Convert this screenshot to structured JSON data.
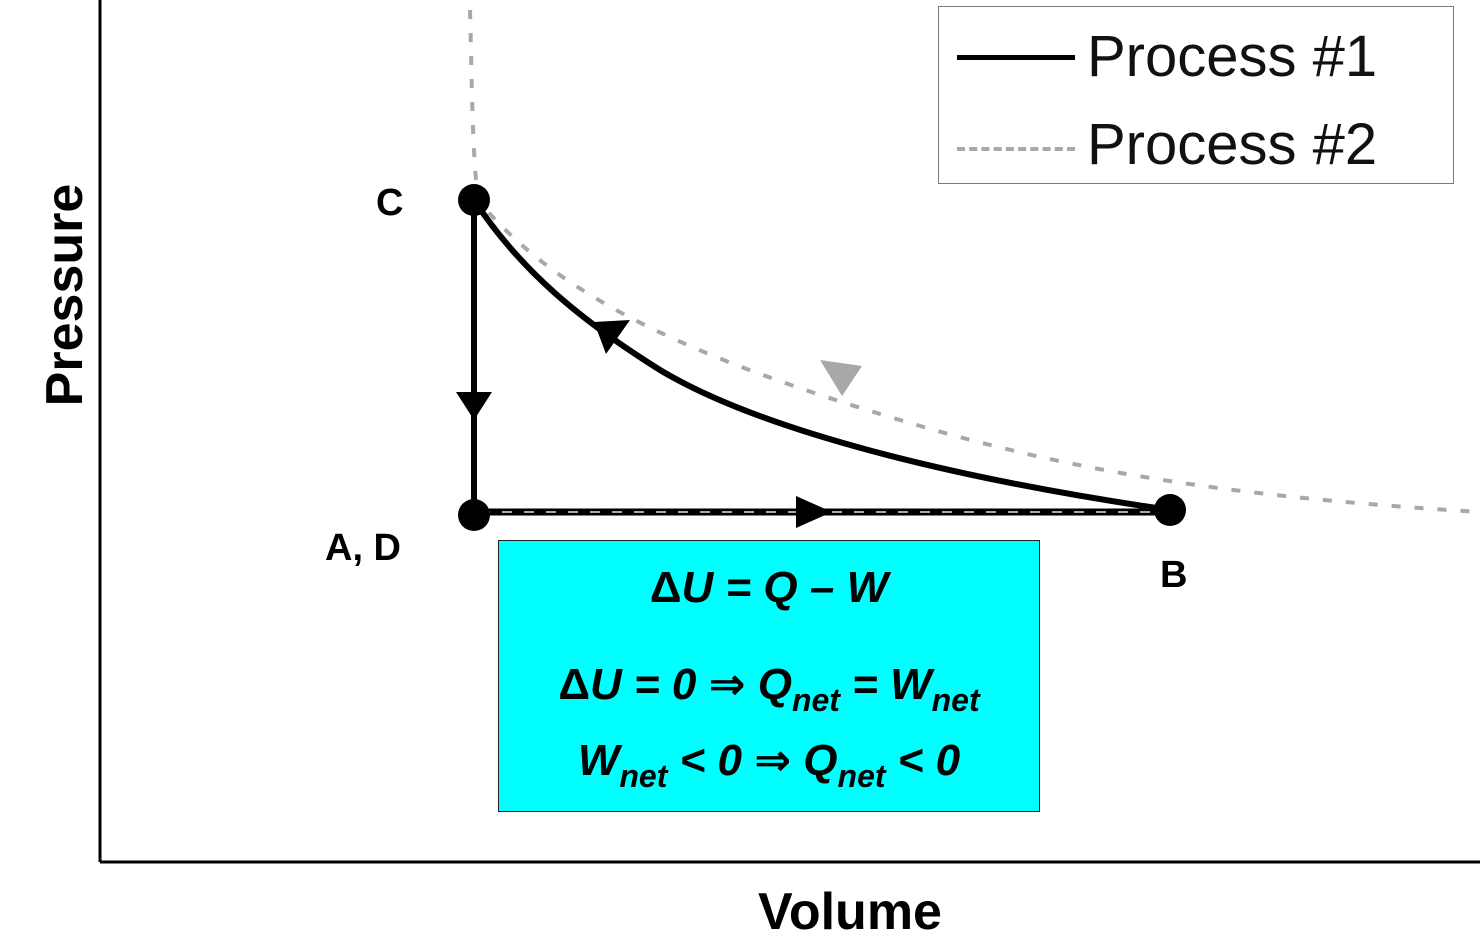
{
  "axes": {
    "x_title": "Volume",
    "y_title": "Pressure"
  },
  "points": {
    "a_d": "A, D",
    "b": "B",
    "c": "C"
  },
  "legend": {
    "process1": "Process #1",
    "process2": "Process #2"
  },
  "equations": {
    "line1": {
      "delta": "Δ",
      "rest": "U = Q – W"
    },
    "line2": {
      "delta": "Δ",
      "a": "U = 0 ",
      "implies": "⇒",
      "q": " Q",
      "q_sub": "net",
      "eq": " = W",
      "w_sub": "net"
    },
    "line3": {
      "w": "W",
      "w_sub": "net",
      "mid": " < 0 ",
      "implies": "⇒",
      "q": " Q",
      "q_sub": "net",
      "end": " < 0"
    }
  },
  "colors": {
    "box_fill": "#00ffff",
    "process1": "#000000",
    "process2": "#a8a8a8"
  }
}
